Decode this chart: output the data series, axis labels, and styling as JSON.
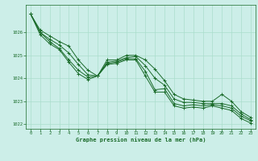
{
  "title": "Graphe pression niveau de la mer (hPa)",
  "background_color": "#cceee8",
  "grid_color": "#aaddcc",
  "line_color": "#1a6b2a",
  "xlim": [
    -0.5,
    23.5
  ],
  "ylim": [
    1021.8,
    1027.2
  ],
  "yticks": [
    1022,
    1023,
    1024,
    1025,
    1026
  ],
  "xticks": [
    0,
    1,
    2,
    3,
    4,
    5,
    6,
    7,
    8,
    9,
    10,
    11,
    12,
    13,
    14,
    15,
    16,
    17,
    18,
    19,
    20,
    21,
    22,
    23
  ],
  "series1": [
    1026.8,
    1026.1,
    1025.85,
    1025.6,
    1025.4,
    1024.8,
    1024.35,
    1024.1,
    1024.8,
    1024.8,
    1025.0,
    1025.0,
    1024.8,
    1024.4,
    1023.9,
    1023.3,
    1023.1,
    1023.05,
    1023.0,
    1023.0,
    1023.3,
    1023.0,
    1022.55,
    1022.3
  ],
  "series2": [
    1026.8,
    1026.0,
    1025.7,
    1025.45,
    1025.1,
    1024.6,
    1024.15,
    1024.1,
    1024.7,
    1024.75,
    1024.9,
    1024.95,
    1024.55,
    1024.0,
    1023.7,
    1023.1,
    1022.95,
    1022.95,
    1022.9,
    1022.9,
    1022.9,
    1022.8,
    1022.45,
    1022.2
  ],
  "series3": [
    1026.8,
    1026.0,
    1025.6,
    1025.3,
    1024.8,
    1024.35,
    1024.05,
    1024.1,
    1024.65,
    1024.7,
    1024.85,
    1024.85,
    1024.3,
    1023.5,
    1023.55,
    1022.9,
    1022.8,
    1022.85,
    1022.8,
    1022.85,
    1022.8,
    1022.7,
    1022.35,
    1022.15
  ],
  "series4": [
    1026.8,
    1025.9,
    1025.5,
    1025.25,
    1024.7,
    1024.2,
    1023.95,
    1024.1,
    1024.6,
    1024.65,
    1024.8,
    1024.8,
    1024.1,
    1023.4,
    1023.4,
    1022.8,
    1022.7,
    1022.75,
    1022.7,
    1022.8,
    1022.7,
    1022.6,
    1022.25,
    1022.05
  ]
}
